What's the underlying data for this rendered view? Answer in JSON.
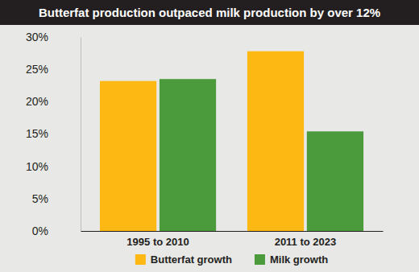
{
  "chart_data": {
    "type": "bar",
    "title": "Butterfat production outpaced milk production by over 12%",
    "categories": [
      "1995 to 2010",
      "2011 to 2023"
    ],
    "series": [
      {
        "name": "Butterfat growth",
        "color": "#fdb813",
        "values": [
          23.2,
          27.8
        ]
      },
      {
        "name": "Milk growth",
        "color": "#4b9a3c",
        "values": [
          23.5,
          15.4
        ]
      }
    ],
    "ylim": [
      0,
      30
    ],
    "yticks": [
      {
        "value": 0,
        "label": "0%"
      },
      {
        "value": 5,
        "label": "5%"
      },
      {
        "value": 10,
        "label": "10%"
      },
      {
        "value": 15,
        "label": "15%"
      },
      {
        "value": 20,
        "label": "20%"
      },
      {
        "value": 25,
        "label": "25%"
      },
      {
        "value": 30,
        "label": "30%"
      }
    ],
    "grid": false,
    "legend": "bottom"
  }
}
